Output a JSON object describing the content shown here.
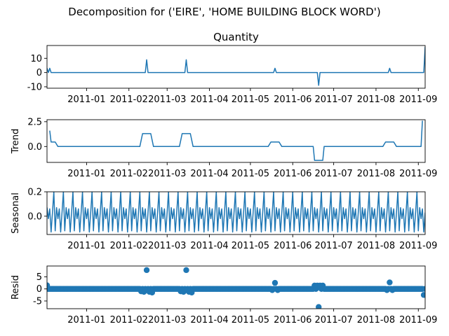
{
  "chart_data": {
    "type": "line",
    "title": "Decomposition for ('EIRE', 'HOME BUILDING BLOCK WORD')",
    "x_ticks": [
      "2011-01",
      "2011-02",
      "2011-03",
      "2011-04",
      "2011-05",
      "2011-06",
      "2011-07",
      "2011-08",
      "2011-09"
    ],
    "x_range": [
      "2010-12-03",
      "2011-09-06"
    ],
    "x_label": "",
    "line_color": "#1f77b4",
    "panels": [
      {
        "name": "Quantity",
        "title": "Quantity",
        "ylabel": "",
        "type": "line",
        "ylim": [
          -11,
          19
        ],
        "yticks": [
          10,
          0,
          -10
        ],
        "base": 0,
        "events": [
          {
            "date": "2010-12-03",
            "value": 3
          },
          {
            "date": "2010-12-05",
            "value": 3
          },
          {
            "date": "2011-02-14",
            "value": 9
          },
          {
            "date": "2011-03-15",
            "value": 9
          },
          {
            "date": "2011-05-19",
            "value": 3
          },
          {
            "date": "2011-06-20",
            "value": -9
          },
          {
            "date": "2011-08-11",
            "value": 3
          },
          {
            "date": "2011-09-06",
            "value": 18
          }
        ]
      },
      {
        "name": "Trend",
        "title": "",
        "ylabel": "Trend",
        "type": "line",
        "ylim": [
          -1.6,
          2.7
        ],
        "yticks": [
          2.5,
          0.0
        ],
        "ytick_labels": [
          "2.5",
          "0.0"
        ],
        "points": [
          [
            "2010-12-05",
            1.6
          ],
          [
            "2010-12-06",
            0.45
          ],
          [
            "2010-12-09",
            0.45
          ],
          [
            "2010-12-11",
            0.0
          ],
          [
            "2011-02-09",
            0.0
          ],
          [
            "2011-02-11",
            1.3
          ],
          [
            "2011-02-17",
            1.3
          ],
          [
            "2011-02-19",
            0.0
          ],
          [
            "2011-03-10",
            0.0
          ],
          [
            "2011-03-12",
            1.3
          ],
          [
            "2011-03-18",
            1.3
          ],
          [
            "2011-03-20",
            0.0
          ],
          [
            "2011-05-14",
            0.0
          ],
          [
            "2011-05-16",
            0.45
          ],
          [
            "2011-05-22",
            0.45
          ],
          [
            "2011-05-24",
            0.0
          ],
          [
            "2011-06-16",
            0.0
          ],
          [
            "2011-06-17",
            -1.4
          ],
          [
            "2011-06-23",
            -1.4
          ],
          [
            "2011-06-24",
            0.0
          ],
          [
            "2011-08-06",
            0.0
          ],
          [
            "2011-08-08",
            0.45
          ],
          [
            "2011-08-14",
            0.45
          ],
          [
            "2011-08-16",
            0.0
          ],
          [
            "2011-09-03",
            0.0
          ],
          [
            "2011-09-04",
            2.6
          ]
        ]
      },
      {
        "name": "Seasonal",
        "title": "",
        "ylabel": "Seasonal",
        "type": "line",
        "ylim": [
          -0.15,
          0.2
        ],
        "yticks": [
          0.2,
          0.0
        ],
        "ytick_labels": [
          "0.2",
          "0.0"
        ],
        "seasonal": {
          "period_days": 7,
          "start": "2010-12-01",
          "end": "2011-09-06",
          "pattern": [
            0.2,
            -0.12,
            0.07,
            -0.02,
            0.06,
            -0.13,
            0.03
          ]
        }
      },
      {
        "name": "Resid",
        "title": "",
        "ylabel": "Resid",
        "type": "scatter",
        "ylim": [
          -8.2,
          9.5
        ],
        "yticks": [
          5,
          0,
          -5
        ],
        "zero_line": true,
        "start": "2010-12-03",
        "end": "2011-09-06",
        "base_value": 0,
        "outliers": [
          {
            "date": "2010-12-03",
            "value": 1.5
          },
          {
            "date": "2011-02-10",
            "value": -1.0
          },
          {
            "date": "2011-02-12",
            "value": -1.2
          },
          {
            "date": "2011-02-14",
            "value": 7.8
          },
          {
            "date": "2011-02-16",
            "value": -1.2
          },
          {
            "date": "2011-02-18",
            "value": -1.5
          },
          {
            "date": "2011-03-11",
            "value": -1.0
          },
          {
            "date": "2011-03-13",
            "value": -1.2
          },
          {
            "date": "2011-03-15",
            "value": 7.8
          },
          {
            "date": "2011-03-17",
            "value": -1.2
          },
          {
            "date": "2011-03-19",
            "value": -1.5
          },
          {
            "date": "2011-05-17",
            "value": -0.5
          },
          {
            "date": "2011-05-19",
            "value": 2.5
          },
          {
            "date": "2011-05-21",
            "value": -0.5
          },
          {
            "date": "2011-06-17",
            "value": 1.4
          },
          {
            "date": "2011-06-19",
            "value": 1.4
          },
          {
            "date": "2011-06-20",
            "value": -7.5
          },
          {
            "date": "2011-06-21",
            "value": 1.4
          },
          {
            "date": "2011-06-23",
            "value": 1.4
          },
          {
            "date": "2011-08-09",
            "value": -0.5
          },
          {
            "date": "2011-08-11",
            "value": 2.7
          },
          {
            "date": "2011-08-13",
            "value": -0.5
          },
          {
            "date": "2011-09-05",
            "value": -2.5
          }
        ]
      }
    ]
  }
}
